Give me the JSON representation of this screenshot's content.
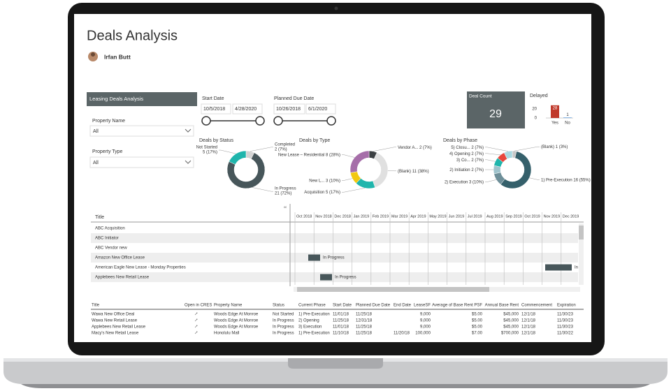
{
  "header": {
    "title": "Deals Analysis",
    "user": "Irfan Butt"
  },
  "filters": {
    "section": "Leasing Deals Analysis",
    "property_name": {
      "label": "Property Name",
      "value": "All"
    },
    "property_type": {
      "label": "Property Type",
      "value": "All"
    },
    "start_date": {
      "label": "Start Date",
      "from": "10/5/2018",
      "to": "4/28/2020"
    },
    "planned_due_date": {
      "label": "Planned Due Date",
      "from": "10/26/2018",
      "to": "6/1/2020"
    }
  },
  "deal_count": {
    "label": "Deal Count",
    "value": 29
  },
  "delayed": {
    "title": "Delayed",
    "categories": [
      "Yes",
      "No"
    ],
    "values": [
      28,
      1
    ],
    "colors": [
      "#c0392b",
      "#4a90d9"
    ],
    "yticks": [
      0,
      20
    ]
  },
  "donuts": [
    {
      "title": "Deals by Status",
      "slices": [
        {
          "name": "Completed",
          "value": 2,
          "label": "2 (7%)",
          "color": "#d3d3d3"
        },
        {
          "name": "In Progress",
          "value": 21,
          "label": "21 (72%)",
          "color": "#47565a"
        },
        {
          "name": "Not Started",
          "value": 5,
          "label": "5 (17%)",
          "color": "#1fb5ac"
        }
      ]
    },
    {
      "title": "Deals by Type",
      "slices": [
        {
          "name": "Vendor A...",
          "value": 2,
          "label": "2 (7%)",
          "color": "#3b3f42"
        },
        {
          "name": "(Blank)",
          "value": 11,
          "label": "11 (38%)",
          "color": "#e0e0e0"
        },
        {
          "name": "Acquisition",
          "value": 5,
          "label": "5 (17%)",
          "color": "#1fb5ac"
        },
        {
          "name": "New L...",
          "value": 3,
          "label": "3 (10%)",
          "color": "#f2c811"
        },
        {
          "name": "New Lease – Residential",
          "value": 8,
          "label": "8 (28%)",
          "color": "#a66ea9"
        }
      ]
    },
    {
      "title": "Deals by Phase",
      "slices": [
        {
          "name": "(Blank)",
          "value": 1,
          "label": "1 (3%)",
          "color": "#c8c8c8"
        },
        {
          "name": "1) Pre-Execution",
          "value": 16,
          "label": "16 (55%)",
          "color": "#35606b"
        },
        {
          "name": "2) Execution",
          "value": 3,
          "label": "3 (10%)",
          "color": "#6e8f99"
        },
        {
          "name": "2) Initiation",
          "value": 2,
          "label": "2 (7%)",
          "color": "#9fc3cc"
        },
        {
          "name": "3) Co...",
          "value": 2,
          "label": "2 (7%)",
          "color": "#1fb5ac"
        },
        {
          "name": "4) Opening",
          "value": 2,
          "label": "2 (7%)",
          "color": "#e8463c"
        },
        {
          "name": "5) Closu...",
          "value": 2,
          "label": "2 (7%)",
          "color": "#a9d8e0"
        }
      ]
    }
  ],
  "gantt": {
    "title_header": "Title",
    "months": [
      "Oct 2018",
      "Nov 2018",
      "Dec 2018",
      "Jan 2019",
      "Feb 2019",
      "Mar 2019",
      "Apr 2019",
      "May 2019",
      "Jun 2019",
      "Jul 2019",
      "Aug 2019",
      "Sep 2019",
      "Oct 2019",
      "Nov 2019",
      "Dec 2019"
    ],
    "rows": [
      {
        "title": "ABC Acquisition",
        "status": null
      },
      {
        "title": "ABC Initiator",
        "status": null
      },
      {
        "title": "ABC Vendor new",
        "status": null
      },
      {
        "title": "Amazon New Office Lease",
        "status": "In Progress"
      },
      {
        "title": "American Eagle New Lease - Monday Properties",
        "status": "In"
      },
      {
        "title": "Applebees New Retail Lease",
        "status": "In Progress"
      }
    ]
  },
  "table": {
    "columns": [
      "Title",
      "Open in CRES",
      "Property Name",
      "Status",
      "Current Phase",
      "Start Date",
      "Planned Due Date",
      "End Date",
      "LeaseSF",
      "Average of Base Rent PSF",
      "Annual Base Rent",
      "Commencement",
      "Expiration"
    ],
    "rows": [
      [
        "Wawa New Office Deal",
        null,
        "Woods Edge At Monroe",
        "Not Started",
        "1) Pre-Execution",
        "11/01/18",
        "11/25/18",
        null,
        "9,000",
        "$5.00",
        "$45,000",
        "12/1/18",
        "11/30/23"
      ],
      [
        "Wawa New Retail Lease",
        null,
        "Woods Edge At Monroe",
        "In Progress",
        "2) Opening",
        "11/25/18",
        "12/31/18",
        null,
        "9,000",
        "$5.00",
        "$45,000",
        "12/1/18",
        "11/30/23"
      ],
      [
        "Applebees New Retail Lease",
        null,
        "Woods Edge At Monroe",
        "In Progress",
        "3) Execution",
        "11/01/18",
        "11/25/18",
        null,
        "9,000",
        "$5.00",
        "$45,000",
        "12/1/18",
        "11/30/23"
      ],
      [
        "Macy's New Retail Lease",
        null,
        "Honolulu Mall",
        "In Progress",
        "1) Pre-Execution",
        "11/10/18",
        "11/25/18",
        "11/20/18",
        "100,000",
        "$7.00",
        "$700,000",
        "12/1/18",
        "11/30/22"
      ]
    ]
  }
}
